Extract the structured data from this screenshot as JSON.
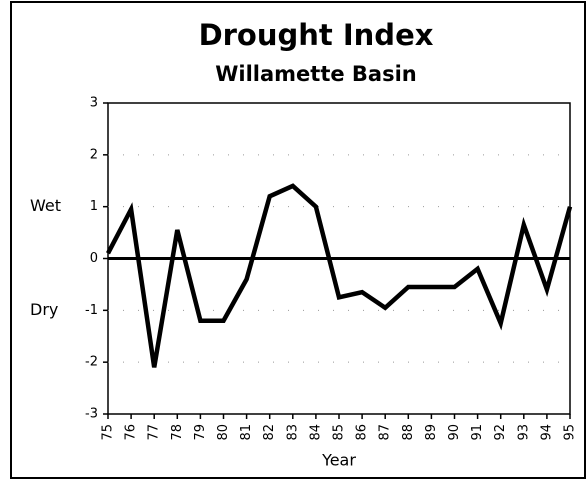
{
  "chart_data": {
    "type": "line",
    "title": "Drought Index",
    "subtitle": "Willamette Basin",
    "x_label": "Year",
    "categories": [
      "75",
      "76",
      "77",
      "78",
      "79",
      "80",
      "81",
      "82",
      "83",
      "84",
      "85",
      "86",
      "87",
      "88",
      "89",
      "90",
      "91",
      "92",
      "93",
      "94",
      "95"
    ],
    "values": [
      0.1,
      0.95,
      -2.1,
      0.55,
      -1.2,
      -1.2,
      -0.4,
      1.2,
      1.4,
      1.0,
      -0.75,
      -0.65,
      -0.95,
      -0.55,
      -0.55,
      -0.55,
      -0.2,
      -1.25,
      0.65,
      -0.6,
      1.0
    ],
    "color": "#000000",
    "ylim": [
      -3,
      3
    ],
    "yticks": [
      3,
      2,
      1,
      0,
      -1,
      -2,
      -3
    ],
    "annotations": [
      {
        "text": "Wet",
        "y": 1
      },
      {
        "text": "Dry",
        "y": -1
      }
    ],
    "grid": true
  }
}
